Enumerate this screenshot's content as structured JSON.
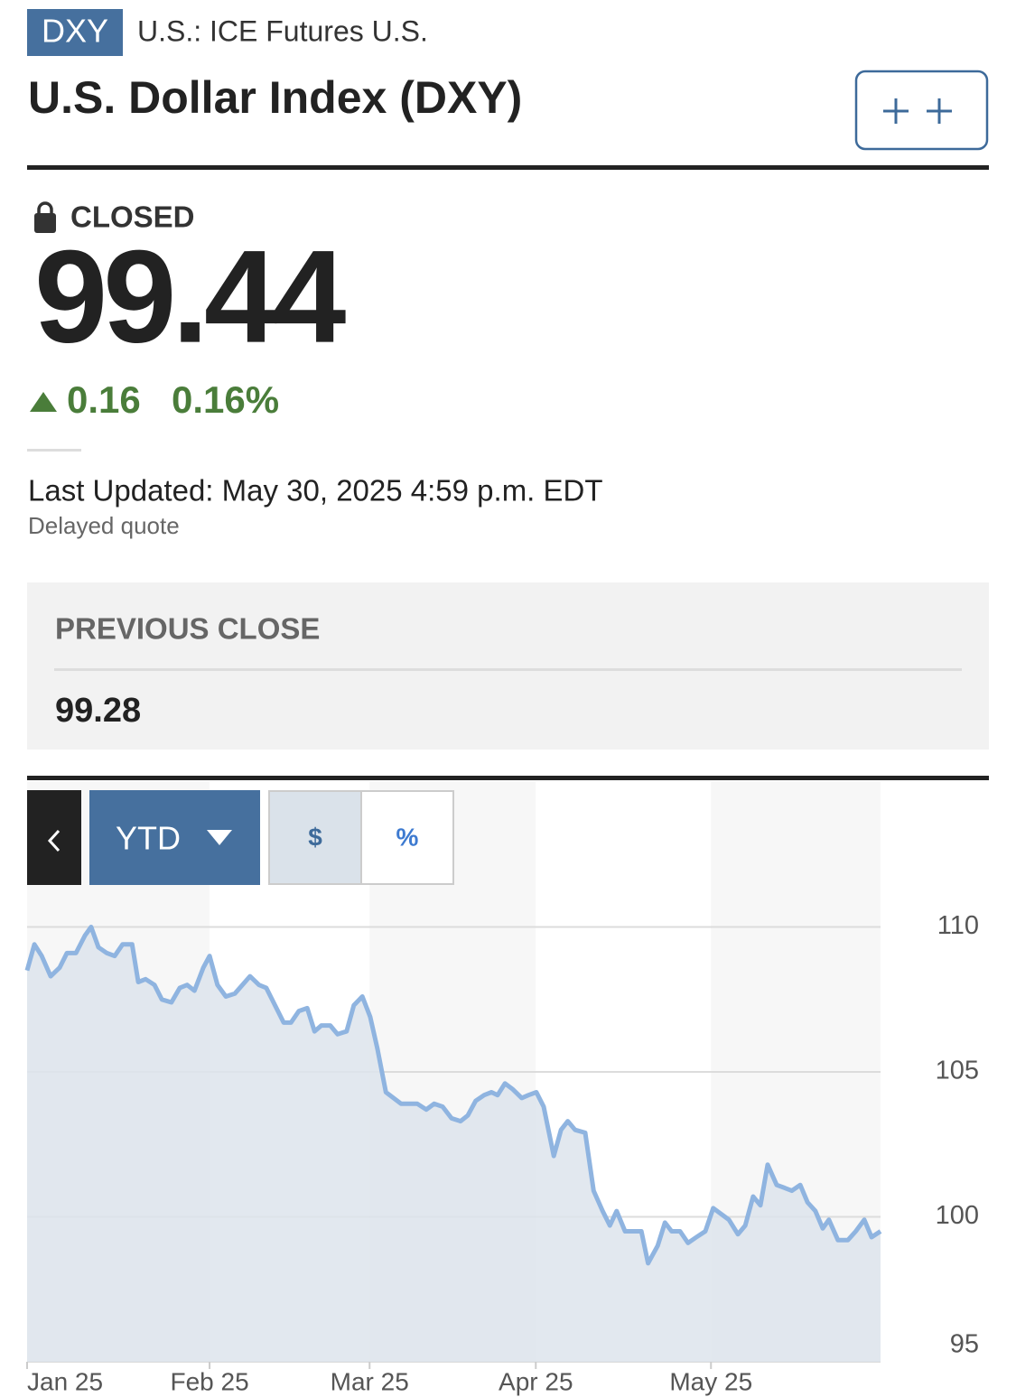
{
  "header": {
    "ticker": "DXY",
    "exchange": "U.S.: ICE Futures U.S.",
    "title": "U.S. Dollar Index (DXY)"
  },
  "quote": {
    "status": "CLOSED",
    "price": "99.44",
    "change": "0.16",
    "change_percent": "0.16%",
    "last_updated": "Last Updated: May 30, 2025 4:59 p.m. EDT",
    "delayed": "Delayed quote"
  },
  "previous_close": {
    "label": "PREVIOUS CLOSE",
    "value": "99.28"
  },
  "controls": {
    "range": "YTD",
    "dollar": "$",
    "percent": "%"
  },
  "chart_data": {
    "type": "line",
    "color": "#8fb4e0",
    "x": [
      0,
      1.3,
      2.6,
      4.2,
      5.8,
      7.1,
      8.7,
      10.3,
      11.4,
      12.7,
      14.2,
      15.6,
      17.0,
      18.7,
      19.8,
      21.1,
      22.7,
      24.0,
      25.7,
      27.2,
      28.5,
      29.8,
      31.4,
      32.5,
      33.9,
      35.4,
      37.0,
      39.7,
      41.3,
      42.6,
      45.7,
      47.0,
      48.4,
      49.9,
      51.2,
      52.4,
      54.0,
      55.3,
      56.9,
      58.2,
      59.7,
      61.1,
      62.4,
      63.9,
      66.6,
      69.5,
      71.1,
      72.5,
      74.0,
      75.6,
      77.2,
      78.5,
      79.9,
      81.4,
      82.7,
      83.8,
      85.1,
      86.5,
      88.1,
      89.3,
      90.7,
      92.0,
      93.8,
      95.1,
      96.3,
      97.6,
      99.4,
      100.9,
      102.5,
      103.8,
      105.0,
      106.5,
      107.9,
      109.4,
      110.6,
      112.3,
      113.6,
      114.8,
      116.3,
      117.7,
      119.2,
      120.8,
      122.2,
      125.0,
      126.6,
      127.9,
      129.3,
      130.6,
      131.9,
      133.5,
      134.9,
      136.2,
      137.7,
      139.0,
      140.4,
      141.7,
      142.8,
      144.4,
      146.2,
      147.6,
      149.1,
      150.4,
      152.0
    ],
    "values": [
      108.5,
      109.4,
      109.0,
      108.3,
      108.6,
      109.1,
      109.1,
      109.7,
      110.0,
      109.3,
      109.1,
      109.0,
      109.4,
      109.4,
      108.1,
      108.2,
      108.0,
      107.5,
      107.4,
      107.9,
      108.0,
      107.8,
      108.6,
      109.0,
      108.0,
      107.6,
      107.7,
      108.3,
      108.0,
      107.9,
      106.7,
      106.7,
      107.1,
      107.2,
      106.4,
      106.6,
      106.6,
      106.3,
      106.4,
      107.3,
      107.6,
      106.9,
      105.8,
      104.3,
      103.9,
      103.9,
      103.7,
      103.9,
      103.8,
      103.4,
      103.3,
      103.5,
      104.0,
      104.2,
      104.3,
      104.2,
      104.6,
      104.4,
      104.1,
      104.2,
      104.3,
      103.8,
      102.1,
      103.0,
      103.3,
      103.0,
      102.9,
      100.9,
      100.2,
      99.7,
      100.2,
      99.5,
      99.5,
      99.5,
      98.4,
      99.0,
      99.8,
      99.5,
      99.5,
      99.1,
      99.3,
      99.5,
      100.3,
      99.9,
      99.4,
      99.7,
      100.7,
      100.4,
      101.8,
      101.1,
      101.0,
      100.9,
      101.1,
      100.5,
      100.2,
      99.6,
      99.9,
      99.2,
      99.2,
      99.5,
      99.9,
      99.3,
      99.5
    ],
    "xlim": [
      0,
      152
    ],
    "xticks": [
      {
        "value": 0,
        "label": "Jan 25"
      },
      {
        "value": 32.5,
        "label": "Feb 25"
      },
      {
        "value": 61.0,
        "label": "Mar 25"
      },
      {
        "value": 90.6,
        "label": "Apr 25"
      },
      {
        "value": 121.8,
        "label": "May 25"
      }
    ],
    "ylim": [
      95,
      115
    ],
    "yticks": [
      95,
      100,
      105,
      110
    ],
    "grid": true
  }
}
